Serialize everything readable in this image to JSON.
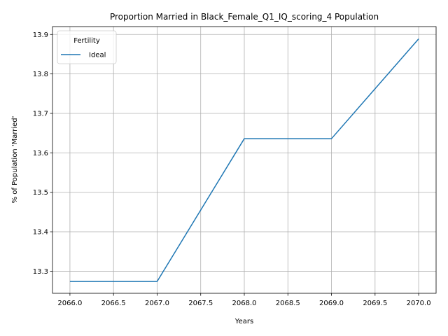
{
  "chart_data": {
    "type": "line",
    "title": "Proportion Married in Black_Female_Q1_IQ_scoring_4 Population",
    "xlabel": "Years",
    "ylabel": "% of Population 'Married'",
    "x_ticks": [
      2066.0,
      2066.5,
      2067.0,
      2067.5,
      2068.0,
      2068.5,
      2069.0,
      2069.5,
      2070.0
    ],
    "y_ticks": [
      13.3,
      13.4,
      13.5,
      13.6,
      13.7,
      13.8,
      13.9
    ],
    "xlim": [
      2065.8,
      2070.2
    ],
    "ylim": [
      13.244,
      13.92
    ],
    "grid": true,
    "legend": {
      "title": "Fertility",
      "placement": "top-left"
    },
    "series": [
      {
        "name": "Ideal",
        "color": "#1f77b4",
        "x": [
          2066,
          2067,
          2068,
          2069,
          2070
        ],
        "values": [
          13.274,
          13.274,
          13.636,
          13.636,
          13.889
        ]
      }
    ]
  }
}
